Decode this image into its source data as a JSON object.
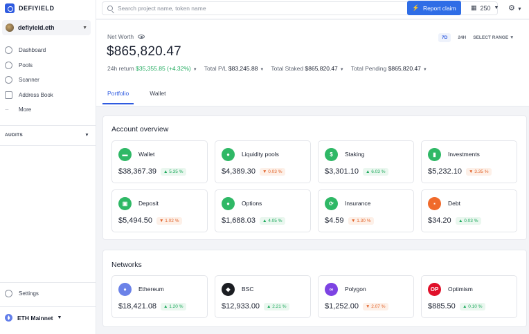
{
  "app": {
    "name": "DEFIYIELD"
  },
  "sidebar": {
    "wallet": "defiyield.eth",
    "items": [
      {
        "label": "Dashboard",
        "icon": "dashboard-icon"
      },
      {
        "label": "Pools",
        "icon": "pools-icon"
      },
      {
        "label": "Scanner",
        "icon": "scanner-icon"
      },
      {
        "label": "Address Book",
        "icon": "address-book-icon"
      },
      {
        "label": "More",
        "icon": "more-icon"
      }
    ],
    "audits_label": "AUDITS",
    "settings_label": "Settings",
    "network": "ETH Mainnet"
  },
  "topbar": {
    "search_placeholder": "Search project name, token name",
    "report_label": "Report claim",
    "points": "250"
  },
  "header": {
    "net_worth_label": "Net Worth",
    "net_worth_value": "$865,820.47",
    "ranges": [
      "7D",
      "24H",
      "SELECT RANGE"
    ],
    "return_label": "24h return",
    "return_value": "$35,355.85 (+4.32%)",
    "pl_label": "Total P/L",
    "pl_value": "$83,245.88",
    "staked_label": "Total Staked",
    "staked_value": "$865,820.47",
    "pending_label": "Total Pending",
    "pending_value": "$865,820.47",
    "tabs": [
      "Portfolio",
      "Wallet"
    ]
  },
  "overview": {
    "title": "Account overview",
    "cards": [
      {
        "name": "Wallet",
        "value": "$38,367.39",
        "change": "5.35 %",
        "dir": "up",
        "color": "#2fb866",
        "glyph": "▬"
      },
      {
        "name": "Liquidity pools",
        "value": "$4,389.30",
        "change": "0.03 %",
        "dir": "down",
        "color": "#2fb866",
        "glyph": "●"
      },
      {
        "name": "Staking",
        "value": "$3,301.10",
        "change": "6.03 %",
        "dir": "up",
        "color": "#2fb866",
        "glyph": "$"
      },
      {
        "name": "Investments",
        "value": "$5,232.10",
        "change": "3.35 %",
        "dir": "down",
        "color": "#2fb866",
        "glyph": "▮"
      },
      {
        "name": "Deposit",
        "value": "$5,494.50",
        "change": "1.02 %",
        "dir": "down",
        "color": "#2fb866",
        "glyph": "▣"
      },
      {
        "name": "Options",
        "value": "$1,688.03",
        "change": "4.05 %",
        "dir": "up",
        "color": "#2fb866",
        "glyph": "●"
      },
      {
        "name": "Insurance",
        "value": "$4.59",
        "change": "1.30 %",
        "dir": "down",
        "color": "#2fb866",
        "glyph": "⟳"
      },
      {
        "name": "Debt",
        "value": "$34.20",
        "change": "0.03 %",
        "dir": "up",
        "color": "#f06a2b",
        "glyph": "▪"
      }
    ]
  },
  "networks": {
    "title": "Networks",
    "cards": [
      {
        "name": "Ethereum",
        "value": "$18,421.08",
        "change": "1.20 %",
        "dir": "up",
        "color": "#6b82e8",
        "glyph": "♦"
      },
      {
        "name": "BSC",
        "value": "$12,933.00",
        "change": "2.21 %",
        "dir": "up",
        "color": "#1b1d22",
        "glyph": "◆"
      },
      {
        "name": "Polygon",
        "value": "$1,252.00",
        "change": "2.07 %",
        "dir": "down",
        "color": "#7d43e3",
        "glyph": "∞"
      },
      {
        "name": "Optimism",
        "value": "$885.50",
        "change": "0.10 %",
        "dir": "up",
        "color": "#e0102a",
        "glyph": "OP"
      }
    ]
  }
}
